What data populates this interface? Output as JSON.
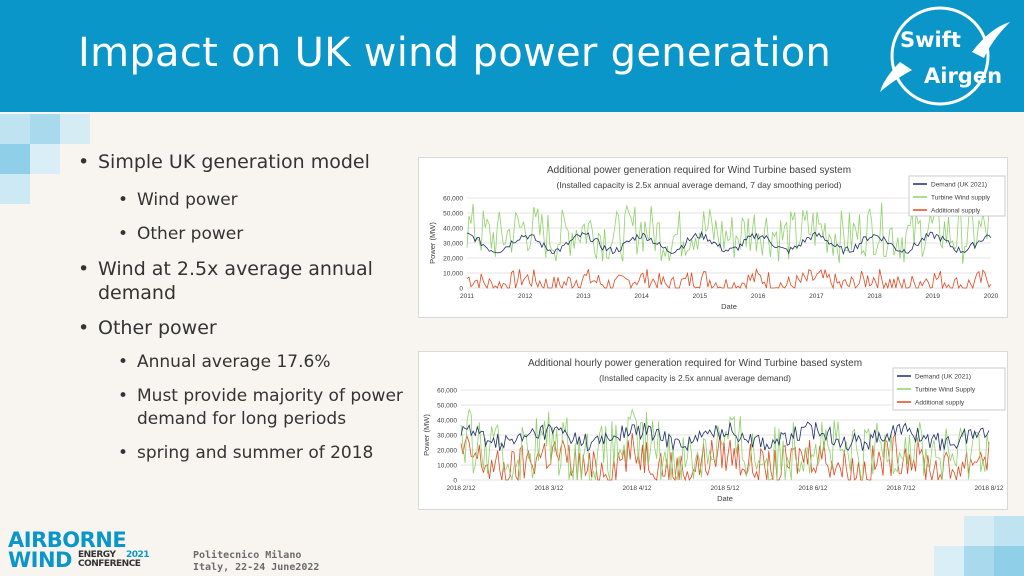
{
  "slide": {
    "title": "Impact on UK wind power generation",
    "accent_color": "#0b96c9",
    "logo": {
      "line1": "Swift",
      "line2": "Airgen"
    }
  },
  "bullets": [
    {
      "level": 1,
      "text": "Simple UK generation model"
    },
    {
      "level": 2,
      "text": "Wind power"
    },
    {
      "level": 2,
      "text": "Other power"
    },
    {
      "level": 1,
      "text": "Wind at 2.5x average annual demand"
    },
    {
      "level": 1,
      "text": "Other power"
    },
    {
      "level": 2,
      "text": "Annual average 17.6%"
    },
    {
      "level": 2,
      "text": "Must provide majority of power demand for long periods"
    },
    {
      "level": 2,
      "text": "spring and summer of 2018"
    }
  ],
  "chart_data": [
    {
      "type": "line",
      "title": "Additional power generation required for Wind Turbine based system",
      "subtitle": "(Installed capacity is 2.5x annual average demand, 7 day smoothing period)",
      "xlabel": "Date",
      "ylabel": "Power (MW)",
      "ylim": [
        0,
        60000
      ],
      "yticks": [
        "0",
        "10,000",
        "20,000",
        "30,000",
        "40,000",
        "50,000",
        "60,000"
      ],
      "xticks": [
        "2011",
        "2012",
        "2013",
        "2014",
        "2015",
        "2016",
        "2017",
        "2018",
        "2019",
        "2020"
      ],
      "legend_position": "top-right",
      "series": [
        {
          "name": "Demand (UK 2021)",
          "color": "#1f2d6b",
          "base": 30000,
          "amp": 5000,
          "noise": 2500,
          "floor": 20000
        },
        {
          "name": "Turbine Wind supply",
          "color": "#8fd16a",
          "base": 37000,
          "amp": 3000,
          "noise": 18000,
          "floor": 8000
        },
        {
          "name": "Additional supply",
          "color": "#e2491f",
          "base": 4000,
          "amp": 2500,
          "noise": 7000,
          "floor": 0
        }
      ]
    },
    {
      "type": "line",
      "title": "Additional hourly power generation required for Wind Turbine based system",
      "subtitle": "(Installed capacity is 2.5x annual average demand)",
      "xlabel": "Date",
      "ylabel": "Power (MW)",
      "ylim": [
        0,
        60000
      ],
      "yticks": [
        "0",
        "10,000",
        "20,000",
        "30,000",
        "40,000",
        "50,000",
        "60,000"
      ],
      "xticks": [
        "2018 2/12",
        "2018 3/12",
        "2018 4/12",
        "2018 5/12",
        "2018 6/12",
        "2018 7/12",
        "2018 8/12"
      ],
      "legend_position": "top-right",
      "series": [
        {
          "name": "Demand (UK 2021)",
          "color": "#1f2d6b",
          "base": 29000,
          "amp": 4000,
          "noise": 6000,
          "floor": 18000
        },
        {
          "name": "Turbine Wind Supply",
          "color": "#8fd16a",
          "base": 20000,
          "amp": 6000,
          "noise": 22000,
          "floor": 0
        },
        {
          "name": "Additional supply",
          "color": "#e2491f",
          "base": 12000,
          "amp": 6000,
          "noise": 14000,
          "floor": 0
        }
      ]
    }
  ],
  "footer": {
    "brand_line1": "AIRBORNE",
    "brand_line2": "WIND",
    "brand_energy": "ENERGY",
    "brand_conference": "CONFERENCE",
    "brand_year": "2021",
    "venue_line1": "Politecnico Milano",
    "venue_line2": "Italy, 22-24 June2022"
  }
}
